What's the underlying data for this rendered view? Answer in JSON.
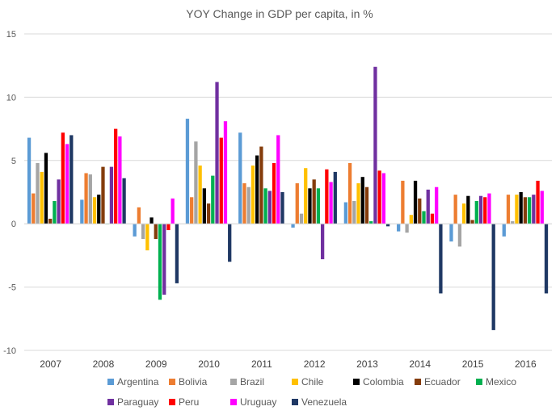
{
  "chart_data": {
    "type": "bar",
    "title": "YOY Change in GDP per capita, in %",
    "xlabel": "",
    "ylabel": "",
    "ylim": [
      -10,
      15
    ],
    "yticks": [
      -10,
      -5,
      0,
      5,
      10,
      15
    ],
    "ytick_labels": [
      "-10",
      "-5",
      "0",
      "5",
      "10",
      "15"
    ],
    "grid": true,
    "legend_position": "bottom",
    "categories": [
      "2007",
      "2008",
      "2009",
      "2010",
      "2011",
      "2012",
      "2013",
      "2014",
      "2015",
      "2016"
    ],
    "series": [
      {
        "name": "Argentina",
        "color": "#5B9BD5",
        "values": [
          6.8,
          1.9,
          -1.0,
          8.3,
          7.2,
          -0.3,
          1.7,
          -0.6,
          -1.4,
          -1.0
        ]
      },
      {
        "name": "Bolivia",
        "color": "#ED7D31",
        "values": [
          2.4,
          4.0,
          1.3,
          2.1,
          3.2,
          3.2,
          4.8,
          3.4,
          2.3,
          2.3
        ]
      },
      {
        "name": "Brazil",
        "color": "#A5A5A5",
        "values": [
          4.8,
          3.9,
          -1.2,
          6.5,
          2.9,
          0.8,
          1.8,
          -0.7,
          -1.8,
          0.2
        ]
      },
      {
        "name": "Chile",
        "color": "#FFC000",
        "values": [
          4.1,
          2.1,
          -2.1,
          4.6,
          4.6,
          4.4,
          3.2,
          0.7,
          1.6,
          2.3
        ]
      },
      {
        "name": "Colombia",
        "color": "#000000",
        "values": [
          5.6,
          2.3,
          0.5,
          2.8,
          5.4,
          2.8,
          3.7,
          3.4,
          2.2,
          2.5
        ]
      },
      {
        "name": "Ecuador",
        "color": "#843C0C",
        "values": [
          0.4,
          4.5,
          -1.2,
          1.6,
          6.1,
          3.5,
          2.9,
          2.0,
          0.3,
          2.1
        ]
      },
      {
        "name": "Mexico",
        "color": "#00B050",
        "values": [
          1.8,
          0.0,
          -6.0,
          3.8,
          2.8,
          2.8,
          0.2,
          1.0,
          1.8,
          2.1
        ]
      },
      {
        "name": "Paraguay",
        "color": "#7030A0",
        "values": [
          3.5,
          4.5,
          -5.6,
          11.2,
          2.6,
          -2.8,
          12.4,
          2.7,
          2.2,
          2.3
        ]
      },
      {
        "name": "Peru",
        "color": "#FF0000",
        "values": [
          7.2,
          7.5,
          -0.5,
          6.8,
          4.8,
          4.3,
          4.2,
          0.8,
          2.1,
          3.4
        ]
      },
      {
        "name": "Uruguay",
        "color": "#FF00FF",
        "values": [
          6.3,
          6.9,
          2.0,
          8.1,
          7.0,
          3.3,
          4.0,
          2.9,
          2.4,
          2.6
        ]
      },
      {
        "name": "Venezuela",
        "color": "#1F3864",
        "values": [
          7.0,
          3.6,
          -4.7,
          -3.0,
          2.5,
          4.1,
          -0.2,
          -5.5,
          -8.4,
          -5.5
        ]
      }
    ]
  }
}
